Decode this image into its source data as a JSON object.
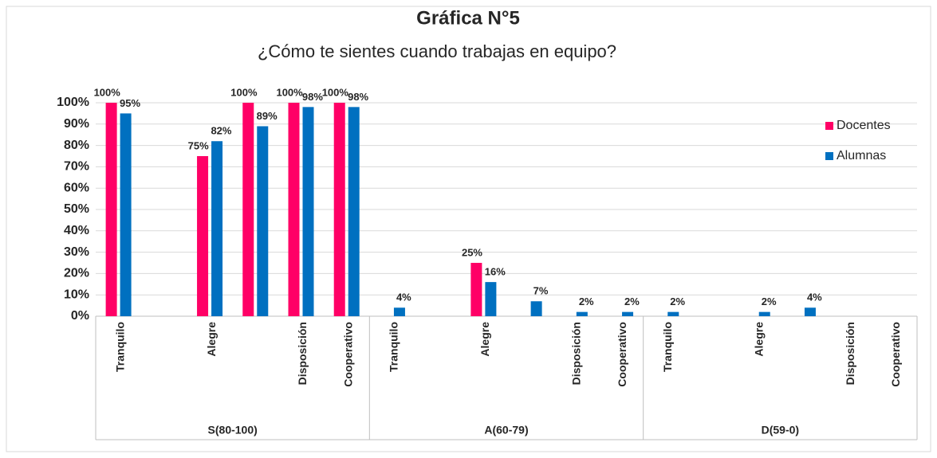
{
  "chart_data": {
    "type": "bar",
    "title": "Gráfica N°5",
    "subtitle": "¿Cómo te sientes cuando trabajas en equipo?",
    "groups": [
      "S(80-100)",
      "A(60-79)",
      "D(59-0)"
    ],
    "categories": [
      "Tranquilo",
      null,
      "Alegre",
      null,
      "Disposición",
      "Cooperativo",
      "Tranquilo",
      null,
      "Alegre",
      null,
      "Disposición",
      "Cooperativo",
      "Tranquilo",
      null,
      "Alegre",
      null,
      "Disposición",
      "Cooperativo"
    ],
    "series": [
      {
        "name": "Docentes",
        "color": "#ff0066",
        "values": [
          100,
          null,
          75,
          100,
          100,
          100,
          null,
          null,
          25,
          null,
          null,
          null,
          null,
          null,
          null,
          null,
          null,
          null
        ],
        "value_labels": [
          "100%",
          null,
          "75%",
          "100%",
          "100%",
          "100%",
          null,
          null,
          "25%",
          null,
          null,
          null,
          null,
          null,
          null,
          null,
          null,
          null
        ]
      },
      {
        "name": "Alumnas",
        "color": "#0070c0",
        "values": [
          95,
          null,
          82,
          89,
          98,
          98,
          4,
          null,
          16,
          7,
          2,
          2,
          2,
          null,
          2,
          4,
          null,
          null
        ],
        "value_labels": [
          "95%",
          null,
          "82%",
          "89%",
          "98%",
          "98%",
          "4%",
          null,
          "16%",
          "7%",
          "2%",
          "2%",
          "2%",
          null,
          "2%",
          "4%",
          null,
          null
        ]
      }
    ],
    "ylim": [
      0,
      100
    ],
    "yticks": [
      {
        "value": 0,
        "label": "0%"
      },
      {
        "value": 10,
        "label": "10%"
      },
      {
        "value": 20,
        "label": "20%"
      },
      {
        "value": 30,
        "label": "30%"
      },
      {
        "value": 40,
        "label": "40%"
      },
      {
        "value": 50,
        "label": "50%"
      },
      {
        "value": 60,
        "label": "60%"
      },
      {
        "value": 70,
        "label": "70%"
      },
      {
        "value": 80,
        "label": "80%"
      },
      {
        "value": 90,
        "label": "90%"
      },
      {
        "value": 100,
        "label": "100%"
      }
    ],
    "grid": true,
    "legend": "right"
  }
}
